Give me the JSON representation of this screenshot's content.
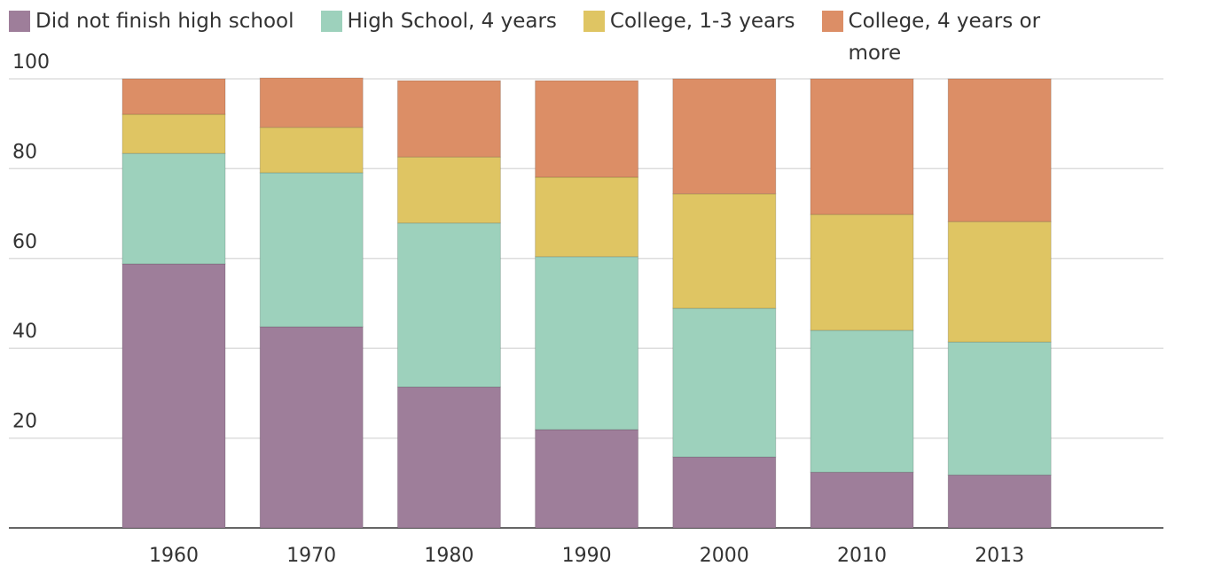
{
  "chart_data": {
    "type": "stacked_bar",
    "categories": [
      "1960",
      "1970",
      "1980",
      "1990",
      "2000",
      "2010",
      "2013"
    ],
    "series": [
      {
        "name": "Did not finish high school",
        "color": "#9e7e9a",
        "values": [
          58.8,
          44.8,
          31.4,
          21.9,
          15.8,
          12.4,
          11.8
        ]
      },
      {
        "name": "High School, 4 years",
        "color": "#9dd1bc",
        "values": [
          24.6,
          34.3,
          36.5,
          38.5,
          33.1,
          31.6,
          29.6
        ]
      },
      {
        "name": "College, 1-3 years",
        "color": "#dfc563",
        "values": [
          8.7,
          10.1,
          14.7,
          17.7,
          25.5,
          25.8,
          26.8
        ]
      },
      {
        "name": "College, 4 years or more",
        "color": "#dc8e66",
        "values": [
          7.9,
          11.0,
          17.0,
          21.5,
          25.6,
          30.2,
          31.8
        ]
      }
    ],
    "ylim": [
      0,
      100
    ],
    "yticks": [
      20,
      40,
      60,
      80,
      100
    ],
    "grid": true,
    "legend": "top"
  }
}
